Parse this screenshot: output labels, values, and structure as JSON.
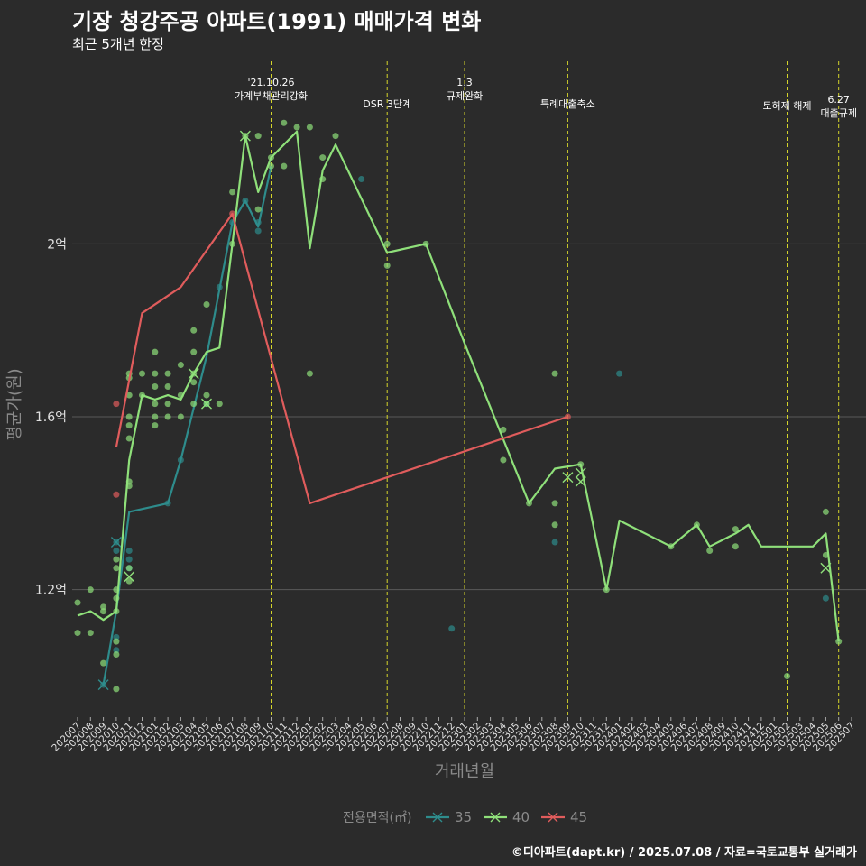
{
  "chart_data": {
    "type": "line",
    "title": "기장 청강주공 아파트(1991) 매매가격 변화",
    "subtitle": "최근 5개년 한정",
    "xlabel": "거래년월",
    "ylabel": "평균가(원)",
    "caption": "©디아파트(dapt.kr) / 2025.07.08 / 자료=국토교통부 실거래가",
    "legend_title": "전용면적(㎡)",
    "legend_position": "bottom",
    "x_ticks": [
      "202007",
      "202008",
      "202009",
      "202010",
      "202011",
      "202012",
      "202101",
      "202102",
      "202103",
      "202104",
      "202105",
      "202106",
      "202107",
      "202108",
      "202109",
      "202110",
      "202111",
      "202112",
      "202201",
      "202202",
      "202203",
      "202204",
      "202205",
      "202206",
      "202207",
      "202208",
      "202209",
      "202210",
      "202211",
      "202212",
      "202301",
      "202302",
      "202303",
      "202304",
      "202305",
      "202306",
      "202307",
      "202308",
      "202309",
      "202310",
      "202311",
      "202312",
      "202401",
      "202402",
      "202403",
      "202404",
      "202405",
      "202406",
      "202407",
      "202408",
      "202409",
      "202410",
      "202411",
      "202412",
      "202501",
      "202502",
      "202503",
      "202504",
      "202505",
      "202506",
      "202507"
    ],
    "y_ticks": [
      {
        "value": 1.2,
        "label": "1.2억"
      },
      {
        "value": 1.6,
        "label": "1.6억"
      },
      {
        "value": 2.0,
        "label": "2억"
      }
    ],
    "ylim": [
      0.905,
      2.435
    ],
    "grid": true,
    "events": [
      {
        "x": "202110",
        "label": "'21.10.26\n가계부채관리강화",
        "row": 0
      },
      {
        "x": "202207",
        "label": "DSR 3단계",
        "row": 2
      },
      {
        "x": "202301",
        "label": "1.3\n규제완화",
        "row": 0
      },
      {
        "x": "202309",
        "label": "특례대출축소",
        "row": 2
      },
      {
        "x": "202502",
        "label": "토허제 해제",
        "row": 1
      },
      {
        "x": "202506",
        "label": "6.27\n대출규제",
        "row": 1.6
      }
    ],
    "series": [
      {
        "name": "35",
        "color": "#2e8c8c",
        "x": [
          "202009",
          "202010",
          "202011",
          "202102",
          "202103",
          "202105",
          "202107",
          "202108",
          "202109",
          "202110"
        ],
        "values": [
          0.98,
          1.15,
          1.38,
          1.4,
          1.5,
          1.74,
          2.05,
          2.1,
          2.04,
          2.18
        ],
        "points": [
          [
            "202009",
            0.98
          ],
          [
            "202010",
            1.06
          ],
          [
            "202010",
            1.09
          ],
          [
            "202010",
            1.31
          ],
          [
            "202010",
            1.29
          ],
          [
            "202011",
            1.29
          ],
          [
            "202011",
            1.27
          ],
          [
            "202011",
            1.25
          ],
          [
            "202102",
            1.4
          ],
          [
            "202103",
            1.5
          ],
          [
            "202105",
            1.63
          ],
          [
            "202106",
            1.9
          ],
          [
            "202107",
            2.05
          ],
          [
            "202108",
            2.1
          ],
          [
            "202109",
            2.03
          ],
          [
            "202109",
            2.05
          ],
          [
            "202205",
            2.15
          ],
          [
            "202212",
            1.11
          ],
          [
            "202308",
            1.31
          ],
          [
            "202401",
            1.7
          ],
          [
            "202505",
            1.18
          ]
        ],
        "crosses": [
          [
            "202009",
            0.98
          ],
          [
            "202010",
            1.31
          ]
        ]
      },
      {
        "name": "40",
        "color": "#8fe07a",
        "x": [
          "202007",
          "202008",
          "202009",
          "202010",
          "202011",
          "202012",
          "202101",
          "202102",
          "202103",
          "202104",
          "202105",
          "202106",
          "202107",
          "202108",
          "202109",
          "202110",
          "202112",
          "202201",
          "202202",
          "202203",
          "202207",
          "202210",
          "202301",
          "202306",
          "202308",
          "202310",
          "202312",
          "202401",
          "202405",
          "202407",
          "202408",
          "202410",
          "202411",
          "202412",
          "202504",
          "202505",
          "202506"
        ],
        "values": [
          1.14,
          1.15,
          1.13,
          1.15,
          1.5,
          1.65,
          1.64,
          1.65,
          1.64,
          1.7,
          1.75,
          1.76,
          2.0,
          2.25,
          2.12,
          2.2,
          2.26,
          1.99,
          2.17,
          2.23,
          1.98,
          2.0,
          1.77,
          1.4,
          1.48,
          1.49,
          1.2,
          1.36,
          1.3,
          1.35,
          1.3,
          1.33,
          1.35,
          1.3,
          1.3,
          1.33,
          1.08
        ],
        "points": [
          [
            "202007",
            1.17
          ],
          [
            "202007",
            1.1
          ],
          [
            "202008",
            1.2
          ],
          [
            "202008",
            1.1
          ],
          [
            "202009",
            1.15
          ],
          [
            "202009",
            1.03
          ],
          [
            "202009",
            1.16
          ],
          [
            "202010",
            0.97
          ],
          [
            "202010",
            1.05
          ],
          [
            "202010",
            1.08
          ],
          [
            "202010",
            1.15
          ],
          [
            "202010",
            1.18
          ],
          [
            "202010",
            1.2
          ],
          [
            "202010",
            1.25
          ],
          [
            "202010",
            1.27
          ],
          [
            "202011",
            1.22
          ],
          [
            "202011",
            1.25
          ],
          [
            "202011",
            1.45
          ],
          [
            "202011",
            1.44
          ],
          [
            "202011",
            1.55
          ],
          [
            "202011",
            1.58
          ],
          [
            "202011",
            1.6
          ],
          [
            "202011",
            1.65
          ],
          [
            "202011",
            1.69
          ],
          [
            "202011",
            1.7
          ],
          [
            "202012",
            1.65
          ],
          [
            "202012",
            1.7
          ],
          [
            "202101",
            1.58
          ],
          [
            "202101",
            1.6
          ],
          [
            "202101",
            1.63
          ],
          [
            "202101",
            1.67
          ],
          [
            "202101",
            1.7
          ],
          [
            "202101",
            1.75
          ],
          [
            "202102",
            1.6
          ],
          [
            "202102",
            1.63
          ],
          [
            "202102",
            1.67
          ],
          [
            "202102",
            1.7
          ],
          [
            "202103",
            1.6
          ],
          [
            "202103",
            1.65
          ],
          [
            "202103",
            1.72
          ],
          [
            "202104",
            1.63
          ],
          [
            "202104",
            1.68
          ],
          [
            "202104",
            1.7
          ],
          [
            "202104",
            1.75
          ],
          [
            "202104",
            1.8
          ],
          [
            "202105",
            1.63
          ],
          [
            "202105",
            1.65
          ],
          [
            "202105",
            1.86
          ],
          [
            "202106",
            1.63
          ],
          [
            "202107",
            2.0
          ],
          [
            "202107",
            2.12
          ],
          [
            "202108",
            2.25
          ],
          [
            "202109",
            2.08
          ],
          [
            "202109",
            2.25
          ],
          [
            "202110",
            2.18
          ],
          [
            "202110",
            2.2
          ],
          [
            "202111",
            2.28
          ],
          [
            "202111",
            2.18
          ],
          [
            "202112",
            2.27
          ],
          [
            "202201",
            1.7
          ],
          [
            "202201",
            2.27
          ],
          [
            "202202",
            2.15
          ],
          [
            "202202",
            2.2
          ],
          [
            "202203",
            2.25
          ],
          [
            "202207",
            2.0
          ],
          [
            "202207",
            1.95
          ],
          [
            "202210",
            2.0
          ],
          [
            "202304",
            1.57
          ],
          [
            "202304",
            1.5
          ],
          [
            "202306",
            1.4
          ],
          [
            "202308",
            1.7
          ],
          [
            "202308",
            1.4
          ],
          [
            "202308",
            1.35
          ],
          [
            "202310",
            1.49
          ],
          [
            "202312",
            1.2
          ],
          [
            "202405",
            1.3
          ],
          [
            "202407",
            1.35
          ],
          [
            "202408",
            1.29
          ],
          [
            "202410",
            1.3
          ],
          [
            "202410",
            1.34
          ],
          [
            "202502",
            1.0
          ],
          [
            "202505",
            1.38
          ],
          [
            "202505",
            1.28
          ],
          [
            "202506",
            1.08
          ]
        ],
        "crosses": [
          [
            "202011",
            1.23
          ],
          [
            "202104",
            1.7
          ],
          [
            "202105",
            1.63
          ],
          [
            "202108",
            2.25
          ],
          [
            "202309",
            1.46
          ],
          [
            "202310",
            1.45
          ],
          [
            "202310",
            1.47
          ],
          [
            "202505",
            1.25
          ]
        ]
      },
      {
        "name": "45",
        "color": "#e05c5c",
        "x": [
          "202010",
          "202012",
          "202103",
          "202107",
          "202201",
          "202309"
        ],
        "values": [
          1.53,
          1.84,
          1.9,
          2.07,
          1.4,
          1.6
        ],
        "points": [
          [
            "202010",
            1.63
          ],
          [
            "202010",
            1.42
          ],
          [
            "202107",
            2.07
          ],
          [
            "202309",
            1.6
          ]
        ],
        "crosses": []
      }
    ]
  }
}
